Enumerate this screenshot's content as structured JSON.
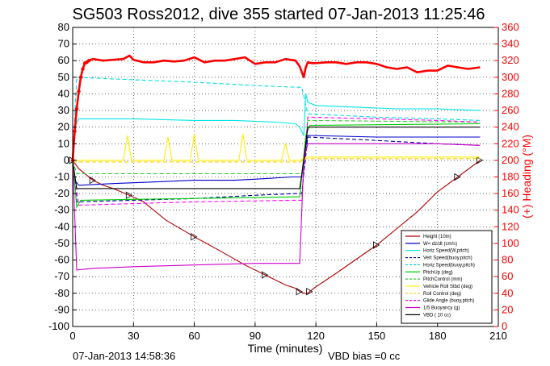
{
  "chart_data": {
    "type": "line",
    "title": "SG503 Ross2012, dive 355 started 07-Jan-2013 11:25:46",
    "xlabel": "Time (minutes)",
    "ylabel_right": "(+) Heading (°M)",
    "xlim": [
      0,
      210
    ],
    "ylim": [
      -100,
      80
    ],
    "ylim_right": [
      0,
      360
    ],
    "xticks": [
      "0",
      "30",
      "60",
      "90",
      "120",
      "150",
      "180",
      "210"
    ],
    "yticks": [
      "80",
      "70",
      "60",
      "50",
      "40",
      "30",
      "20",
      "10",
      "0",
      "-10",
      "-20",
      "-30",
      "-40",
      "-50",
      "-60",
      "-70",
      "-80",
      "-90",
      "-100"
    ],
    "yticks_right": [
      "360",
      "340",
      "320",
      "300",
      "280",
      "260",
      "240",
      "220",
      "200",
      "180",
      "160",
      "140",
      "120",
      "100",
      "80",
      "60",
      "40",
      "20",
      "0"
    ],
    "grid": true,
    "legend_position": "bottom-right",
    "footer_left": "07-Jan-2013 14:58:36",
    "footer_right": "VBD bias =0 cc",
    "colors": {
      "heading": "#ff0000",
      "axis_right": "#ff0000"
    },
    "series": [
      {
        "name": "Height (10m)",
        "color": "#b00000",
        "style": "solid",
        "marker": "triangle",
        "x": [
          0,
          3,
          6,
          10,
          15,
          20,
          28,
          35,
          46,
          60,
          72,
          85,
          95,
          105,
          110,
          112,
          114,
          116,
          117,
          119,
          130,
          150,
          170,
          180,
          190,
          201
        ],
        "y": [
          0,
          -5,
          -8,
          -12,
          -15,
          -17,
          -21,
          -25,
          -36,
          -46,
          -54,
          -63,
          -69,
          -75,
          -77,
          -79,
          -80,
          -80,
          -79,
          -77,
          -68,
          -51,
          -31,
          -19,
          -10,
          0
        ]
      },
      {
        "name": "W= dz/dt (cm/s)",
        "color": "#0000cc",
        "style": "solid",
        "x": [
          0,
          1,
          3,
          20,
          40,
          60,
          80,
          95,
          108,
          110,
          113,
          114,
          116,
          150,
          180,
          201
        ],
        "y": [
          0,
          -12,
          -15,
          -14,
          -13,
          -12,
          -12,
          -11,
          -10,
          -10,
          -10,
          0,
          15,
          14,
          14,
          14
        ]
      },
      {
        "name": "Horiz Speed(W,pitch)",
        "color": "#00e5e5",
        "style": "solid",
        "x": [
          0,
          1,
          3,
          10,
          30,
          60,
          80,
          100,
          110,
          112,
          114,
          115,
          116,
          120,
          140,
          160,
          180,
          201
        ],
        "y": [
          0,
          20,
          25,
          25,
          25,
          24,
          24,
          23,
          22,
          20,
          15,
          40,
          35,
          33,
          32,
          31,
          31,
          30
        ]
      },
      {
        "name": "Vert Speed(buoy,pitch)",
        "color": "#0000aa",
        "style": "dashed",
        "x": [
          0,
          2,
          30,
          60,
          90,
          110,
          113,
          116,
          150,
          180,
          201
        ],
        "y": [
          0,
          -25,
          -24,
          -23,
          -21,
          -20,
          -20,
          14,
          12,
          10,
          9
        ]
      },
      {
        "name": "Horiz Speed(buoy,pitch)",
        "color": "#00dddd",
        "style": "dashed",
        "x": [
          0,
          2,
          20,
          60,
          90,
          110,
          113,
          116,
          150,
          180,
          201
        ],
        "y": [
          0,
          50,
          49,
          47,
          45,
          44,
          44,
          28,
          26,
          25,
          24
        ]
      },
      {
        "name": "PitchUp (deg)",
        "color": "#00cc00",
        "style": "solid",
        "x": [
          0,
          2,
          4,
          110,
          112,
          115,
          117,
          201
        ],
        "y": [
          0,
          -28,
          -24,
          -22,
          -22,
          15,
          21,
          22
        ]
      },
      {
        "name": "PitchControl (mm)",
        "color": "#33cc33",
        "style": "dashed",
        "x": [
          0,
          2,
          110,
          113,
          116,
          201
        ],
        "y": [
          0,
          -8,
          -8,
          -8,
          24,
          23
        ]
      },
      {
        "name": "Vehicle Roll Stbd (deg)",
        "color": "#ffee00",
        "style": "solid",
        "x": [
          0,
          10,
          25,
          27,
          29,
          45,
          47,
          49,
          58,
          60,
          62,
          82,
          84,
          86,
          103,
          105,
          107,
          112,
          115,
          120,
          140,
          160,
          180,
          201
        ],
        "y": [
          0,
          0,
          0,
          15,
          0,
          0,
          14,
          0,
          0,
          16,
          0,
          0,
          16,
          0,
          0,
          10,
          0,
          0,
          2,
          2,
          2,
          2,
          2,
          2
        ]
      },
      {
        "name": "Roll Control (deg)",
        "color": "#ffcc00",
        "style": "dashed",
        "x": [
          0,
          112,
          115,
          201
        ],
        "y": [
          -1,
          -1,
          1,
          1
        ]
      },
      {
        "name": "Glide Angle (buoy,pitch)",
        "color": "#ff00ff",
        "style": "dashed",
        "x": [
          0,
          3,
          60,
          110,
          113,
          116,
          150,
          180,
          201
        ],
        "y": [
          0,
          -27,
          -25,
          -24,
          -24,
          26,
          25,
          24,
          23
        ]
      },
      {
        "name": "1/5 Buoyancy (g)",
        "color": "#cc00cc",
        "style": "solid",
        "x": [
          0,
          2,
          10,
          30,
          60,
          90,
          110,
          112,
          114,
          116,
          130,
          160,
          180,
          201
        ],
        "y": [
          0,
          -66,
          -65,
          -64,
          -63,
          -62,
          -62,
          -62,
          0,
          10,
          10,
          10,
          10,
          9
        ]
      },
      {
        "name": "VBD ( 10 cc)",
        "color": "#000000",
        "style": "solid",
        "x": [
          0,
          2,
          110,
          112,
          114,
          116,
          201
        ],
        "y": [
          0,
          -17,
          -17,
          -17,
          0,
          20,
          20
        ]
      }
    ],
    "heading": {
      "name": "Heading (°M)",
      "color": "#ff0000",
      "x": [
        0,
        1,
        2,
        3,
        4,
        5,
        6,
        7,
        8,
        10,
        15,
        20,
        25,
        28,
        30,
        35,
        40,
        45,
        50,
        55,
        60,
        65,
        70,
        75,
        80,
        85,
        90,
        95,
        100,
        105,
        110,
        112,
        114,
        115,
        116,
        118,
        120,
        125,
        130,
        135,
        140,
        145,
        150,
        155,
        160,
        165,
        170,
        175,
        180,
        185,
        190,
        195,
        201
      ],
      "y": [
        200,
        235,
        262,
        283,
        300,
        310,
        317,
        318,
        320,
        322,
        320,
        321,
        322,
        326,
        321,
        318,
        318,
        320,
        319,
        320,
        324,
        318,
        320,
        320,
        322,
        324,
        316,
        318,
        318,
        322,
        320,
        313,
        300,
        312,
        318,
        317,
        317,
        318,
        318,
        316,
        318,
        318,
        316,
        312,
        310,
        312,
        306,
        308,
        308,
        314,
        312,
        310,
        312
      ]
    }
  }
}
